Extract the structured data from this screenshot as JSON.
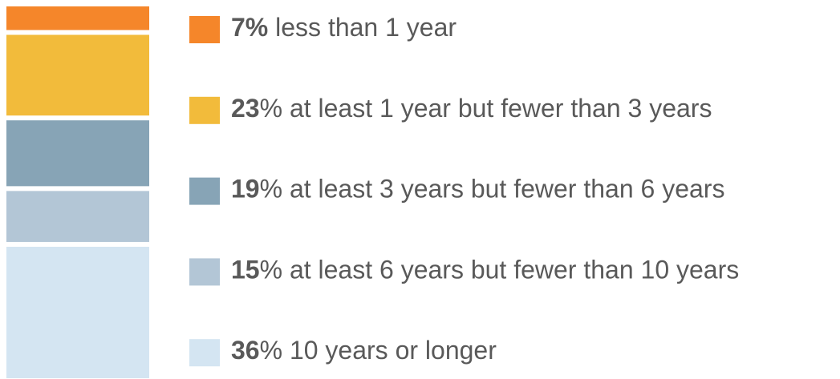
{
  "chart_data": {
    "type": "stacked_bar",
    "series": [
      {
        "name": "less than 1 year",
        "color": "#f5862a",
        "values": [
          7
        ],
        "value_labels": [
          "7%"
        ]
      },
      {
        "name": "at least 1 year but fewer than 3 years",
        "color": "#f2bb3b",
        "values": [
          23
        ],
        "value_labels": [
          "23%"
        ]
      },
      {
        "name": "at least 3 years but fewer than 6 years",
        "color": "#87a4b6",
        "values": [
          19
        ],
        "value_labels": [
          "19%"
        ]
      },
      {
        "name": "at least 6 years but fewer than 10 years",
        "color": "#b3c6d6",
        "values": [
          15
        ],
        "value_labels": [
          "15%"
        ]
      },
      {
        "name": "10 years or longer",
        "color": "#d4e5f2",
        "values": [
          36
        ],
        "value_labels": [
          "36%"
        ]
      }
    ]
  }
}
